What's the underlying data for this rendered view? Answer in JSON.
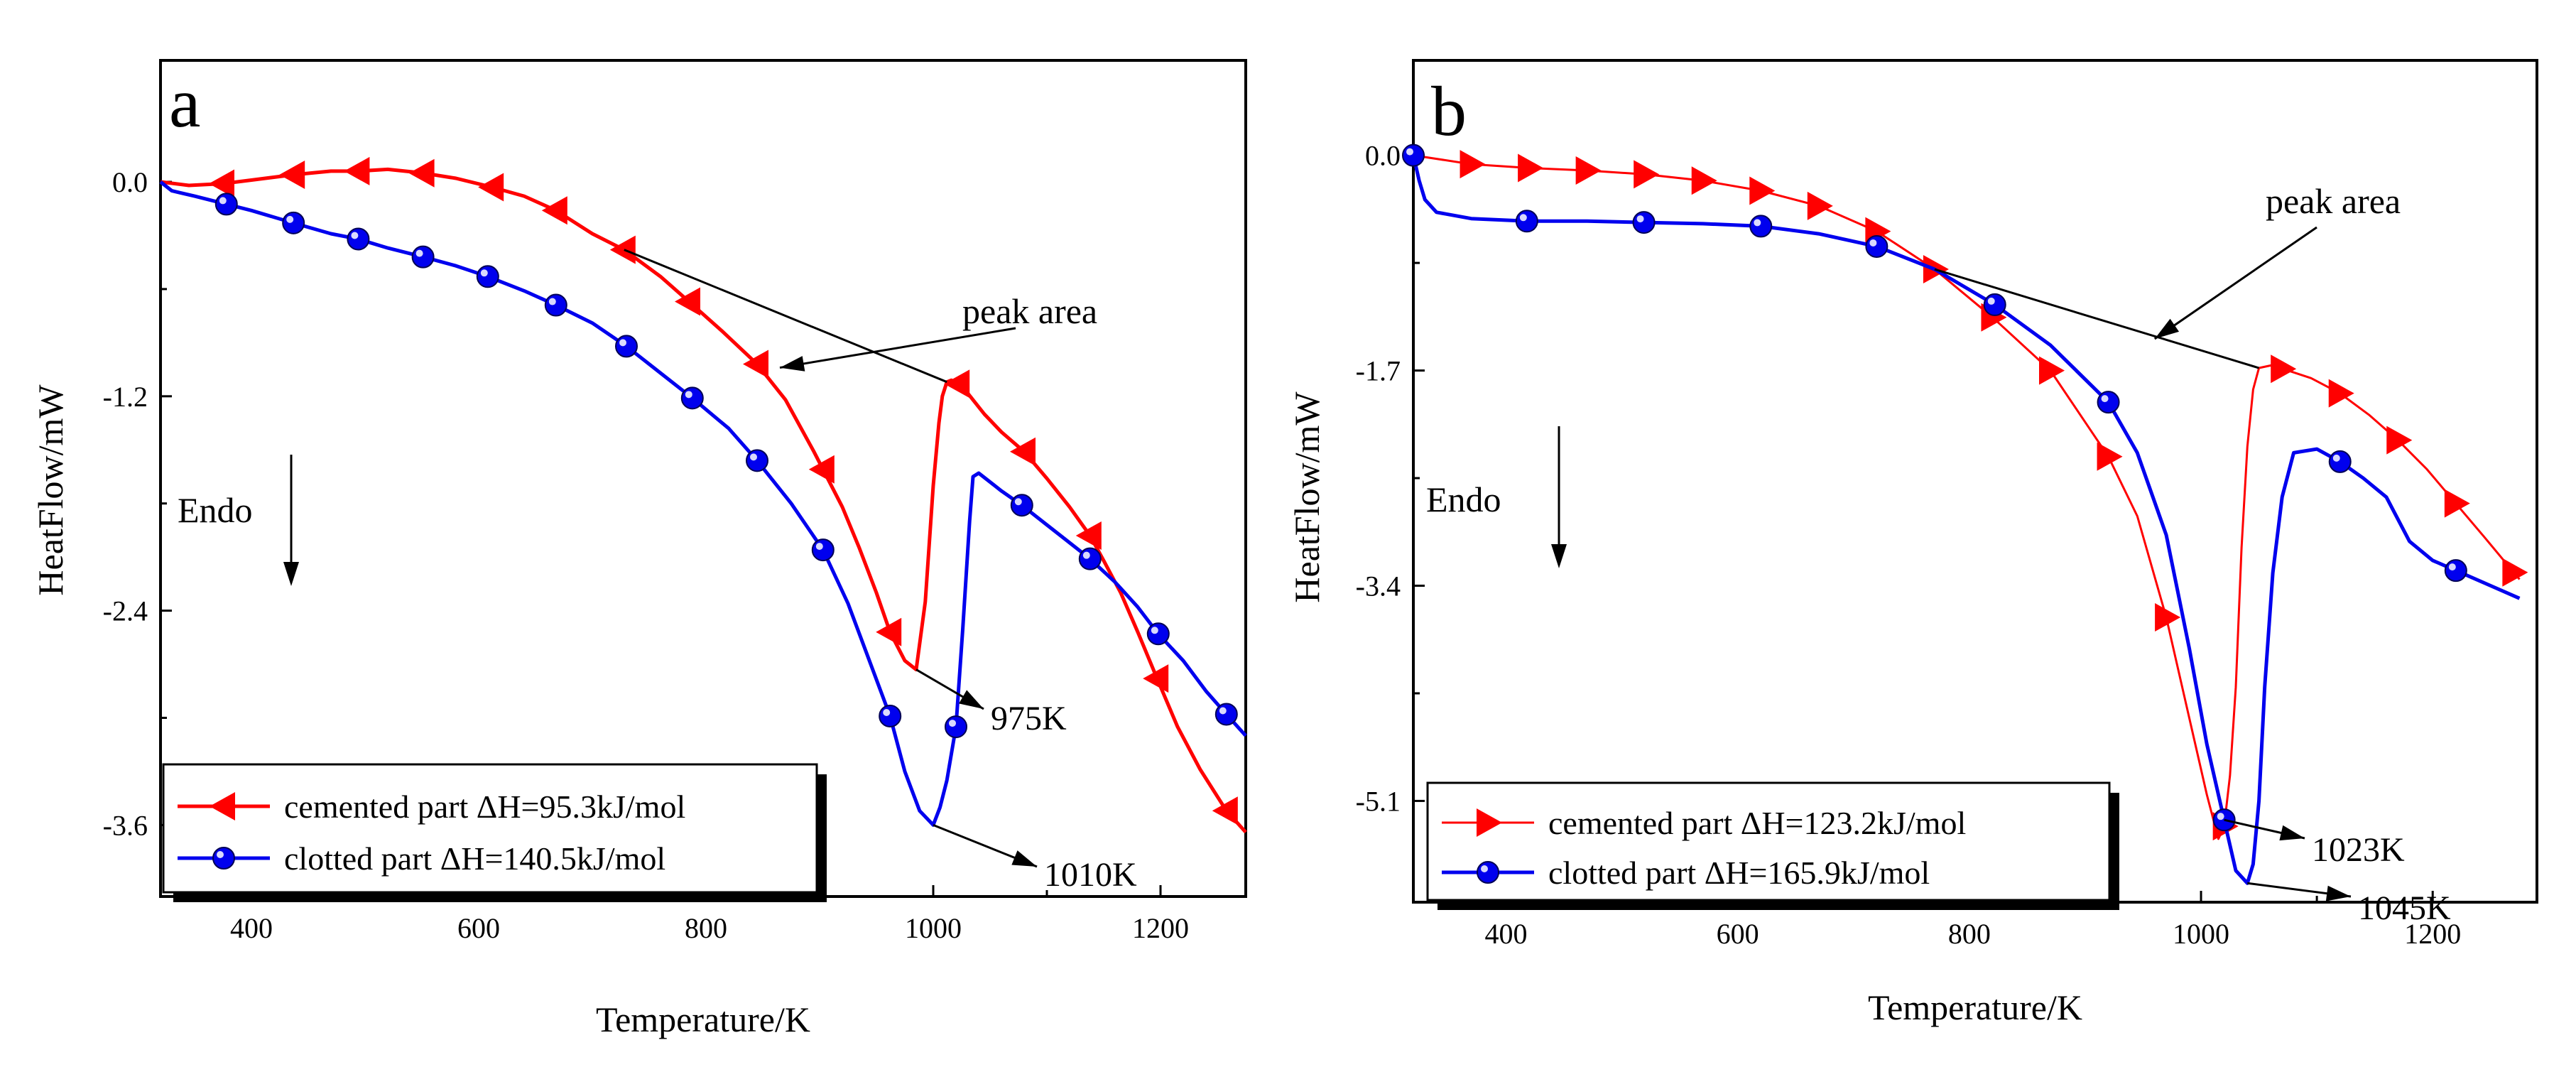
{
  "chart_data": [
    {
      "type": "line",
      "panel_label": "a",
      "xlabel": "Temperature/K",
      "ylabel": "HeatFlow/mW",
      "xlim": [
        320,
        1275
      ],
      "ylim": [
        -4.0,
        0.68
      ],
      "x_ticks": [
        400,
        600,
        800,
        1000,
        1200
      ],
      "y_ticks": [
        0.0,
        -1.2,
        -2.4,
        -3.6
      ],
      "y_tick_labels": [
        "0.0",
        "-1.2",
        "-2.4",
        "-3.6"
      ],
      "endo_label": "Endo",
      "series": [
        {
          "name": "cemented part ΔH=95.3kJ/mol",
          "color": "#ff0000",
          "marker": "triangle-left",
          "x": [
            320,
            345,
            375,
            400,
            437,
            470,
            494,
            520,
            550,
            580,
            612,
            640,
            668,
            700,
            728,
            760,
            785,
            815,
            845,
            870,
            895,
            920,
            935,
            950,
            962,
            975,
            985,
            993,
            1000,
            1005,
            1008,
            1012,
            1016,
            1022,
            1030,
            1045,
            1060,
            1080,
            1100,
            1120,
            1138,
            1150,
            1165,
            1180,
            1197,
            1215,
            1235,
            1258,
            1275
          ],
          "y": [
            0.0,
            -0.02,
            -0.01,
            0.01,
            0.04,
            0.06,
            0.06,
            0.07,
            0.05,
            0.02,
            -0.03,
            -0.08,
            -0.16,
            -0.29,
            -0.38,
            -0.53,
            -0.67,
            -0.84,
            -1.02,
            -1.22,
            -1.51,
            -1.82,
            -2.05,
            -2.3,
            -2.52,
            -2.68,
            -2.73,
            -2.35,
            -1.7,
            -1.35,
            -1.2,
            -1.12,
            -1.11,
            -1.13,
            -1.18,
            -1.3,
            -1.4,
            -1.51,
            -1.66,
            -1.82,
            -1.98,
            -2.12,
            -2.3,
            -2.52,
            -2.78,
            -3.05,
            -3.29,
            -3.52,
            -3.64
          ],
          "marker_x": [
            375,
            437,
            494,
            551,
            612,
            668,
            728,
            785,
            845,
            903,
            962,
            1022,
            1080,
            1138,
            1197,
            1258
          ]
        },
        {
          "name": "clotted part ΔH=140.5kJ/mol",
          "color": "#0000ee",
          "marker": "circle",
          "x": [
            320,
            330,
            350,
            375,
            400,
            437,
            470,
            494,
            520,
            551,
            580,
            608,
            640,
            668,
            700,
            730,
            760,
            788,
            820,
            845,
            875,
            903,
            925,
            945,
            962,
            975,
            988,
            1000,
            1006,
            1012,
            1020,
            1026,
            1032,
            1035,
            1040,
            1050,
            1060,
            1078,
            1100,
            1120,
            1138,
            1160,
            1180,
            1198,
            1220,
            1240,
            1258,
            1275
          ],
          "y": [
            0.0,
            -0.05,
            -0.08,
            -0.12,
            -0.16,
            -0.23,
            -0.29,
            -0.32,
            -0.37,
            -0.42,
            -0.47,
            -0.53,
            -0.61,
            -0.69,
            -0.79,
            -0.92,
            -1.07,
            -1.21,
            -1.38,
            -1.56,
            -1.8,
            -2.06,
            -2.36,
            -2.7,
            -2.99,
            -3.3,
            -3.52,
            -3.6,
            -3.5,
            -3.35,
            -3.05,
            -2.5,
            -1.9,
            -1.65,
            -1.63,
            -1.68,
            -1.73,
            -1.81,
            -1.92,
            -2.02,
            -2.11,
            -2.24,
            -2.38,
            -2.53,
            -2.68,
            -2.85,
            -2.98,
            -3.1
          ],
          "marker_x": [
            378,
            437,
            494,
            551,
            608,
            668,
            730,
            788,
            845,
            903,
            962,
            1020,
            1078,
            1138,
            1198,
            1258
          ]
        }
      ],
      "annotations": [
        {
          "text": "peak area",
          "arrow_to": [
            865,
            -1.04
          ]
        },
        {
          "text": "975K",
          "arrow_from": [
            985,
            -2.73
          ]
        },
        {
          "text": "1010K",
          "arrow_from": [
            1000,
            -3.6
          ]
        }
      ]
    },
    {
      "type": "line",
      "panel_label": "b",
      "xlabel": "Temperature/K",
      "ylabel": "HeatFlow/mW",
      "xlim": [
        320,
        1290
      ],
      "ylim": [
        -5.9,
        0.75
      ],
      "x_ticks": [
        400,
        600,
        800,
        1000,
        1200
      ],
      "y_ticks": [
        0.0,
        -1.7,
        -3.4,
        -5.1
      ],
      "y_tick_labels": [
        "0.0",
        "-1.7",
        "-3.4",
        "-5.1"
      ],
      "endo_label": "Endo",
      "series": [
        {
          "name": "cemented part ΔH=123.2kJ/mol",
          "color": "#ff0000",
          "marker": "triangle-right",
          "x": [
            320,
            370,
            420,
            470,
            520,
            570,
            620,
            670,
            720,
            770,
            820,
            870,
            920,
            945,
            970,
            990,
            1005,
            1015,
            1020,
            1025,
            1030,
            1035,
            1040,
            1045,
            1050,
            1060,
            1075,
            1095,
            1120,
            1145,
            1170,
            1195,
            1220,
            1245,
            1275
          ],
          "y": [
            0.0,
            -0.07,
            -0.1,
            -0.12,
            -0.15,
            -0.2,
            -0.28,
            -0.4,
            -0.6,
            -0.9,
            -1.28,
            -1.7,
            -2.38,
            -2.85,
            -3.65,
            -4.45,
            -5.05,
            -5.4,
            -5.3,
            -4.9,
            -4.2,
            -3.1,
            -2.3,
            -1.85,
            -1.68,
            -1.66,
            -1.7,
            -1.76,
            -1.88,
            -2.05,
            -2.25,
            -2.48,
            -2.75,
            -3.02,
            -3.35
          ],
          "marker_x": [
            370,
            420,
            470,
            520,
            570,
            620,
            670,
            720,
            770,
            820,
            870,
            920,
            970,
            1020,
            1070,
            1120,
            1170,
            1220,
            1270
          ]
        },
        {
          "name": "clotted part ΔH=165.9kJ/mol",
          "color": "#0000ee",
          "marker": "circle",
          "x": [
            320,
            325,
            330,
            340,
            370,
            418,
            470,
            519,
            570,
            620,
            670,
            720,
            770,
            822,
            870,
            920,
            945,
            970,
            990,
            1005,
            1020,
            1030,
            1040,
            1045,
            1050,
            1055,
            1062,
            1070,
            1080,
            1100,
            1120,
            1140,
            1160,
            1180,
            1200,
            1220,
            1250,
            1275
          ],
          "y": [
            0.0,
            -0.2,
            -0.35,
            -0.45,
            -0.5,
            -0.52,
            -0.52,
            -0.53,
            -0.54,
            -0.56,
            -0.62,
            -0.72,
            -0.9,
            -1.18,
            -1.5,
            -1.95,
            -2.35,
            -3.0,
            -3.9,
            -4.65,
            -5.25,
            -5.65,
            -5.75,
            -5.6,
            -5.1,
            -4.2,
            -3.3,
            -2.7,
            -2.35,
            -2.32,
            -2.42,
            -2.55,
            -2.7,
            -3.05,
            -3.2,
            -3.28,
            -3.4,
            -3.5
          ],
          "marker_x": [
            320,
            418,
            519,
            620,
            720,
            822,
            920,
            1020,
            1120,
            1220
          ]
        }
      ],
      "annotations": [
        {
          "text": "peak area",
          "arrow_to": [
            960,
            -1.45
          ]
        },
        {
          "text": "1023K",
          "arrow_from": [
            1020,
            -5.25
          ]
        },
        {
          "text": "1045K",
          "arrow_from": [
            1040,
            -5.75
          ]
        }
      ]
    }
  ]
}
